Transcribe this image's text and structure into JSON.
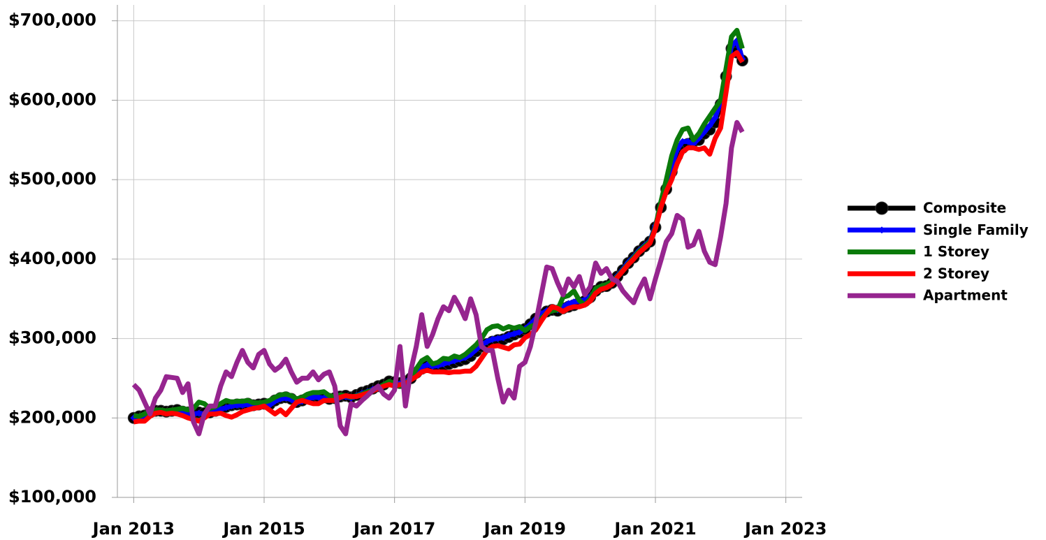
{
  "chart_data": {
    "type": "line",
    "legend": "right",
    "grid": true,
    "x": [
      "2013-01",
      "2013-02",
      "2013-03",
      "2013-04",
      "2013-05",
      "2013-06",
      "2013-07",
      "2013-08",
      "2013-09",
      "2013-10",
      "2013-11",
      "2013-12",
      "2014-01",
      "2014-02",
      "2014-03",
      "2014-04",
      "2014-05",
      "2014-06",
      "2014-07",
      "2014-08",
      "2014-09",
      "2014-10",
      "2014-11",
      "2014-12",
      "2015-01",
      "2015-02",
      "2015-03",
      "2015-04",
      "2015-05",
      "2015-06",
      "2015-07",
      "2015-08",
      "2015-09",
      "2015-10",
      "2015-11",
      "2015-12",
      "2016-01",
      "2016-02",
      "2016-03",
      "2016-04",
      "2016-05",
      "2016-06",
      "2016-07",
      "2016-08",
      "2016-09",
      "2016-10",
      "2016-11",
      "2016-12",
      "2017-01",
      "2017-02",
      "2017-03",
      "2017-04",
      "2017-05",
      "2017-06",
      "2017-07",
      "2017-08",
      "2017-09",
      "2017-10",
      "2017-11",
      "2017-12",
      "2018-01",
      "2018-02",
      "2018-03",
      "2018-04",
      "2018-05",
      "2018-06",
      "2018-07",
      "2018-08",
      "2018-09",
      "2018-10",
      "2018-11",
      "2018-12",
      "2019-01",
      "2019-02",
      "2019-03",
      "2019-04",
      "2019-05",
      "2019-06",
      "2019-07",
      "2019-08",
      "2019-09",
      "2019-10",
      "2019-11",
      "2019-12",
      "2020-01",
      "2020-02",
      "2020-03",
      "2020-04",
      "2020-05",
      "2020-06",
      "2020-07",
      "2020-08",
      "2020-09",
      "2020-10",
      "2020-11",
      "2020-12",
      "2021-01",
      "2021-02",
      "2021-03",
      "2021-04",
      "2021-05",
      "2021-06",
      "2021-07",
      "2021-08",
      "2021-09",
      "2021-10",
      "2021-11",
      "2021-12",
      "2022-01",
      "2022-02",
      "2022-03",
      "2022-04",
      "2022-05"
    ],
    "xlim": [
      "2012-10",
      "2023-04"
    ],
    "xticks": [
      {
        "value": "2013-01",
        "label": "Jan 2013"
      },
      {
        "value": "2015-01",
        "label": "Jan 2015"
      },
      {
        "value": "2017-01",
        "label": "Jan 2017"
      },
      {
        "value": "2019-01",
        "label": "Jan 2019"
      },
      {
        "value": "2021-01",
        "label": "Jan 2021"
      },
      {
        "value": "2023-01",
        "label": "Jan 2023"
      }
    ],
    "ylim": [
      100000,
      720000
    ],
    "yticks": [
      {
        "value": 100000,
        "label": "$100,000"
      },
      {
        "value": 200000,
        "label": "$200,000"
      },
      {
        "value": 300000,
        "label": "$300,000"
      },
      {
        "value": 400000,
        "label": "$400,000"
      },
      {
        "value": 500000,
        "label": "$500,000"
      },
      {
        "value": 600000,
        "label": "$600,000"
      },
      {
        "value": 700000,
        "label": "$700,000"
      }
    ],
    "series": [
      {
        "name": "Composite",
        "color": "#000000",
        "marker": "circle",
        "values": [
          200000,
          202000,
          203000,
          207000,
          209000,
          209000,
          208000,
          209000,
          210000,
          208000,
          207000,
          206000,
          207000,
          206000,
          207000,
          209000,
          212000,
          214000,
          216000,
          217000,
          217000,
          218000,
          216000,
          217000,
          218000,
          217000,
          222000,
          225000,
          226000,
          224000,
          220000,
          222000,
          225000,
          227000,
          227000,
          226000,
          224000,
          225000,
          227000,
          228000,
          226000,
          229000,
          232000,
          234000,
          237000,
          240000,
          242000,
          246000,
          245000,
          244000,
          246000,
          250000,
          257000,
          262000,
          265000,
          263000,
          264000,
          266000,
          268000,
          270000,
          272000,
          274000,
          278000,
          284000,
          290000,
          293000,
          296000,
          298000,
          299000,
          302000,
          305000,
          308000,
          312000,
          318000,
          325000,
          330000,
          334000,
          336000,
          335000,
          338000,
          340000,
          342000,
          345000,
          347000,
          352000,
          360000,
          365000,
          366000,
          370000,
          378000,
          386000,
          395000,
          402000,
          410000,
          416000,
          422000,
          440000,
          465000,
          488000,
          510000,
          530000,
          540000,
          545000,
          548000,
          550000,
          558000,
          563000,
          572000,
          595000,
          630000,
          665000,
          660000,
          650000
        ]
      },
      {
        "name": "Single Family",
        "color": "#0000ff",
        "marker": "diamond",
        "values": [
          200000,
          201000,
          202000,
          206000,
          208000,
          208000,
          207000,
          208000,
          209000,
          207000,
          206000,
          205000,
          206000,
          205000,
          206000,
          208000,
          211000,
          213000,
          215000,
          216000,
          216000,
          217000,
          215000,
          216000,
          217000,
          216000,
          221000,
          224000,
          225000,
          223000,
          219000,
          221000,
          224000,
          226000,
          226000,
          225000,
          223000,
          224000,
          226000,
          227000,
          225000,
          228000,
          231000,
          233000,
          236000,
          239000,
          241000,
          245000,
          244000,
          243000,
          245000,
          250000,
          258000,
          264000,
          267000,
          265000,
          266000,
          268000,
          270000,
          272000,
          274000,
          276000,
          280000,
          286000,
          292000,
          296000,
          299000,
          300000,
          301000,
          304000,
          306000,
          308000,
          312000,
          318000,
          325000,
          331000,
          335000,
          336000,
          336000,
          340000,
          344000,
          346000,
          347000,
          349000,
          353000,
          360000,
          365000,
          366000,
          371000,
          379000,
          387000,
          396000,
          403000,
          411000,
          417000,
          423000,
          442000,
          468000,
          492000,
          518000,
          538000,
          548000,
          548000,
          545000,
          552000,
          560000,
          568000,
          578000,
          598000,
          635000,
          668000,
          675000,
          652000
        ]
      },
      {
        "name": "1 Storey",
        "color": "#0a7a0a",
        "values": [
          203000,
          202000,
          205000,
          208000,
          210000,
          210000,
          209000,
          210000,
          211000,
          212000,
          210000,
          212000,
          220000,
          218000,
          212000,
          214000,
          218000,
          222000,
          220000,
          221000,
          221000,
          222000,
          219000,
          219000,
          220000,
          222000,
          226000,
          229000,
          230000,
          228000,
          224000,
          226000,
          230000,
          232000,
          232000,
          233000,
          228000,
          227000,
          229000,
          228000,
          226000,
          228000,
          230000,
          233000,
          235000,
          238000,
          242000,
          246000,
          244000,
          240000,
          243000,
          250000,
          262000,
          272000,
          276000,
          268000,
          270000,
          275000,
          274000,
          278000,
          276000,
          280000,
          286000,
          292000,
          300000,
          311000,
          315000,
          316000,
          312000,
          315000,
          313000,
          315000,
          310000,
          315000,
          318000,
          325000,
          332000,
          335000,
          336000,
          352000,
          354000,
          360000,
          348000,
          342000,
          350000,
          363000,
          366000,
          368000,
          372000,
          378000,
          386000,
          394000,
          402000,
          410000,
          416000,
          422000,
          440000,
          472000,
          500000,
          530000,
          550000,
          563000,
          565000,
          550000,
          558000,
          570000,
          580000,
          590000,
          600000,
          640000,
          680000,
          688000,
          665000
        ]
      },
      {
        "name": "2 Storey",
        "color": "#ff0000",
        "values": [
          195000,
          196000,
          196000,
          202000,
          206000,
          207000,
          205000,
          206000,
          205000,
          203000,
          200000,
          198000,
          196000,
          200000,
          205000,
          205000,
          206000,
          203000,
          201000,
          204000,
          208000,
          210000,
          212000,
          213000,
          215000,
          210000,
          205000,
          210000,
          204000,
          212000,
          220000,
          222000,
          220000,
          218000,
          218000,
          222000,
          222000,
          222000,
          226000,
          228000,
          227000,
          227000,
          229000,
          231000,
          234000,
          237000,
          240000,
          242000,
          240000,
          242000,
          243000,
          248000,
          252000,
          258000,
          260000,
          258000,
          258000,
          258000,
          257000,
          258000,
          258000,
          259000,
          259000,
          265000,
          275000,
          285000,
          290000,
          291000,
          289000,
          287000,
          292000,
          293000,
          301000,
          305000,
          311000,
          322000,
          332000,
          340000,
          338000,
          334000,
          338000,
          340000,
          340000,
          342000,
          347000,
          357000,
          362000,
          364000,
          368000,
          377000,
          385000,
          393000,
          400000,
          408000,
          414000,
          420000,
          438000,
          465000,
          485000,
          500000,
          520000,
          535000,
          540000,
          540000,
          538000,
          540000,
          532000,
          552000,
          565000,
          610000,
          655000,
          660000,
          648000
        ]
      },
      {
        "name": "Apartment",
        "color": "#96258f",
        "values": [
          242000,
          235000,
          220000,
          205000,
          225000,
          235000,
          252000,
          251000,
          250000,
          232000,
          243000,
          195000,
          180000,
          205000,
          215000,
          215000,
          240000,
          258000,
          252000,
          270000,
          285000,
          270000,
          263000,
          280000,
          285000,
          268000,
          260000,
          265000,
          274000,
          258000,
          245000,
          250000,
          250000,
          258000,
          248000,
          255000,
          258000,
          240000,
          190000,
          180000,
          218000,
          215000,
          222000,
          228000,
          235000,
          240000,
          230000,
          225000,
          235000,
          290000,
          215000,
          260000,
          290000,
          330000,
          290000,
          305000,
          325000,
          340000,
          335000,
          352000,
          340000,
          325000,
          350000,
          330000,
          290000,
          285000,
          285000,
          250000,
          220000,
          235000,
          225000,
          265000,
          270000,
          290000,
          320000,
          355000,
          390000,
          388000,
          370000,
          355000,
          375000,
          365000,
          378000,
          355000,
          365000,
          395000,
          382000,
          388000,
          375000,
          372000,
          360000,
          352000,
          345000,
          362000,
          375000,
          350000,
          375000,
          398000,
          422000,
          432000,
          455000,
          450000,
          415000,
          418000,
          435000,
          410000,
          396000,
          393000,
          428000,
          470000,
          540000,
          572000,
          560000
        ]
      }
    ]
  }
}
